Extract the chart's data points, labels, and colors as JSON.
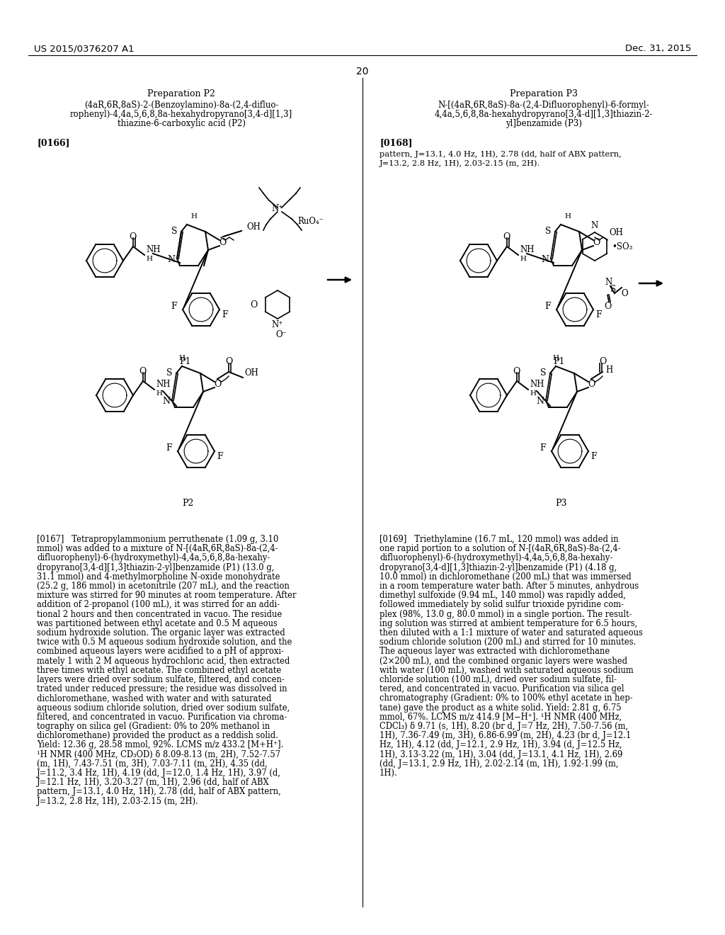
{
  "bg": "#ffffff",
  "header_left": "US 2015/0376207 A1",
  "header_right": "Dec. 31, 2015",
  "page_num": "20",
  "left_prep": "Preparation P2",
  "left_name": [
    "(4aR,6R,8aS)-2-(Benzoylamino)-8a-(2,4-difluo-",
    "rophenyl)-4,4a,5,6,8,8a-hexahydropyrano[3,4-d][1,3]",
    "thiazine-6-carboxylic acid (P2)"
  ],
  "left_para": "[0166]",
  "right_prep": "Preparation P3",
  "right_name": [
    "N-[(4aR,6R,8aS)-8a-(2,4-Difluorophenyl)-6-formyl-",
    "4,4a,5,6,8,8a-hexahydropyrano[3,4-d][1,3]thiazin-2-",
    "yl]benzamide (P3)"
  ],
  "right_para": "[0168]",
  "right_header_text": [
    "pattern, J=13.1, 4.0 Hz, 1H), 2.78 (dd, half of ABX pattern,",
    "J=13.2, 2.8 Hz, 1H), 2.03-2.15 (m, 2H)."
  ],
  "left_body": [
    "[0167]   Tetrapropylammonium perruthenate (1.09 g, 3.10",
    "mmol) was added to a mixture of N-[(4aR,6R,8aS)-8a-(2,4-",
    "difluorophenyl)-6-(hydroxymethyl)-4,4a,5,6,8,8a-hexahy-",
    "dropyrano[3,4-d][1,3]thiazin-2-yl]benzamide (P1) (13.0 g,",
    "31.1 mmol) and 4-methylmorpholine N-oxide monohydrate",
    "(25.2 g, 186 mmol) in acetonitrile (207 mL), and the reaction",
    "mixture was stirred for 90 minutes at room temperature. After",
    "addition of 2-propanol (100 mL), it was stirred for an addi-",
    "tional 2 hours and then concentrated in vacuo. The residue",
    "was partitioned between ethyl acetate and 0.5 M aqueous",
    "sodium hydroxide solution. The organic layer was extracted",
    "twice with 0.5 M aqueous sodium hydroxide solution, and the",
    "combined aqueous layers were acidified to a pH of approxi-",
    "mately 1 with 2 M aqueous hydrochloric acid, then extracted",
    "three times with ethyl acetate. The combined ethyl acetate",
    "layers were dried over sodium sulfate, filtered, and concen-",
    "trated under reduced pressure; the residue was dissolved in",
    "dichloromethane, washed with water and with saturated",
    "aqueous sodium chloride solution, dried over sodium sulfate,",
    "filtered, and concentrated in vacuo. Purification via chroma-",
    "tography on silica gel (Gradient: 0% to 20% methanol in",
    "dichloromethane) provided the product as a reddish solid.",
    "Yield: 12.36 g, 28.58 mmol, 92%. LCMS m/z 433.2 [M+H⁺].",
    "¹H NMR (400 MHz, CD₃OD) δ 8.09-8.13 (m, 2H), 7.52-7.57",
    "(m, 1H), 7.43-7.51 (m, 3H), 7.03-7.11 (m, 2H), 4.35 (dd,",
    "J=11.2, 3.4 Hz, 1H), 4.19 (dd, J=12.0, 1.4 Hz, 1H), 3.97 (d,",
    "J=12.1 Hz, 1H), 3.20-3.27 (m, 1H), 2.96 (dd, half of ABX",
    "pattern, J=13.1, 4.0 Hz, 1H), 2.78 (dd, half of ABX pattern,",
    "J=13.2, 2.8 Hz, 1H), 2.03-2.15 (m, 2H)."
  ],
  "right_body": [
    "[0169]   Triethylamine (16.7 mL, 120 mmol) was added in",
    "one rapid portion to a solution of N-[(4aR,6R,8aS)-8a-(2,4-",
    "difluorophenyl)-6-(hydroxymethyl)-4,4a,5,6,8,8a-hexahy-",
    "dropyrano[3,4-d][1,3]thiazin-2-yl]benzamide (P1) (4.18 g,",
    "10.0 mmol) in dichloromethane (200 mL) that was immersed",
    "in a room temperature water bath. After 5 minutes, anhydrous",
    "dimethyl sulfoxide (9.94 mL, 140 mmol) was rapidly added,",
    "followed immediately by solid sulfur trioxide pyridine com-",
    "plex (98%, 13.0 g, 80.0 mmol) in a single portion. The result-",
    "ing solution was stirred at ambient temperature for 6.5 hours,",
    "then diluted with a 1:1 mixture of water and saturated aqueous",
    "sodium chloride solution (200 mL) and stirred for 10 minutes.",
    "The aqueous layer was extracted with dichloromethane",
    "(2×200 mL), and the combined organic layers were washed",
    "with water (100 mL), washed with saturated aqueous sodium",
    "chloride solution (100 mL), dried over sodium sulfate, fil-",
    "tered, and concentrated in vacuo. Purification via silica gel",
    "chromatography (Gradient: 0% to 100% ethyl acetate in hep-",
    "tane) gave the product as a white solid. Yield: 2.81 g, 6.75",
    "mmol, 67%. LCMS m/z 414.9 [M−H⁺]. ¹H NMR (400 MHz,",
    "CDCl₃) δ 9.71 (s, 1H), 8.20 (br d, J=7 Hz, 2H), 7.50-7.56 (m,",
    "1H), 7.36-7.49 (m, 3H), 6.86-6.99 (m, 2H), 4.23 (br d, J=12.1",
    "Hz, 1H), 4.12 (dd, J=12.1, 2.9 Hz, 1H), 3.94 (d, J=12.5 Hz,",
    "1H), 3.13-3.22 (m, 1H), 3.04 (dd, J=13.1, 4.1 Hz, 1H), 2.69",
    "(dd, J=13.1, 2.9 Hz, 1H), 2.02-2.14 (m, 1H), 1.92-1.99 (m,",
    "1H)."
  ]
}
